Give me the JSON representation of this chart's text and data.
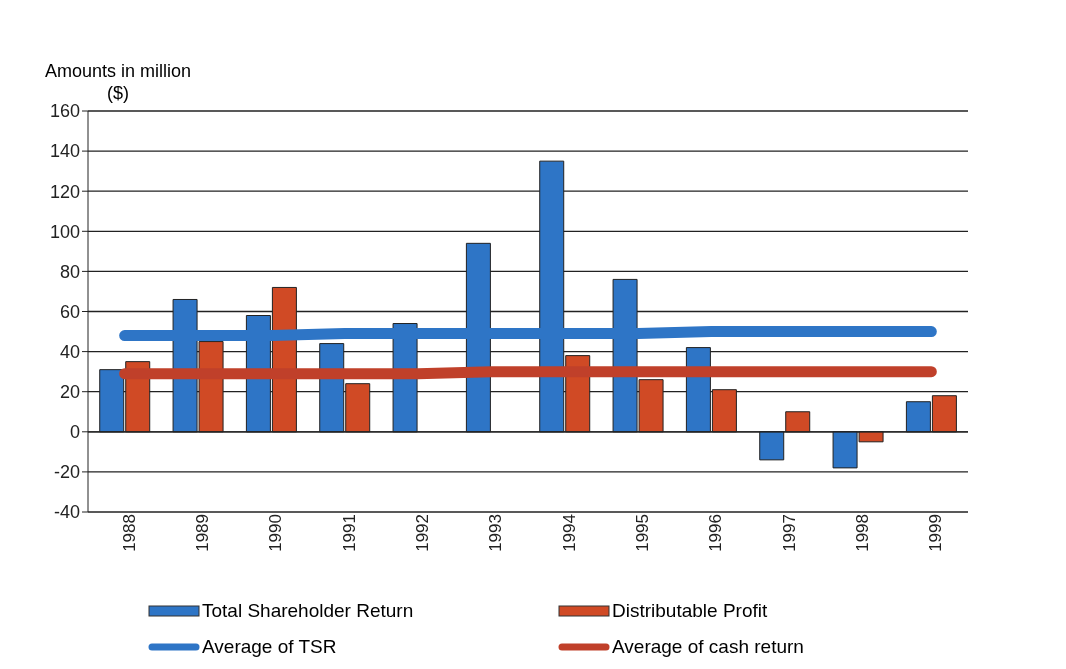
{
  "chart_data": {
    "type": "bar",
    "ylabel": "Amounts in million ($)",
    "categories": [
      "1988",
      "1989",
      "1990",
      "1991",
      "1992",
      "1993",
      "1994",
      "1995",
      "1996",
      "1997",
      "1998",
      "1999"
    ],
    "series": [
      {
        "name": "Total Shareholder Return",
        "color": "#2e75c6",
        "values": [
          31,
          66,
          58,
          44,
          54,
          94,
          135,
          76,
          42,
          -14,
          -18,
          15
        ]
      },
      {
        "name": "Distributable Profit",
        "color": "#d04a25",
        "values": [
          35,
          45,
          72,
          24,
          null,
          null,
          38,
          26,
          21,
          10,
          -5,
          18
        ]
      },
      {
        "name": "Average of TSR",
        "type": "line",
        "color": "#2e75c6",
        "values": [
          48,
          48,
          48,
          49,
          49,
          49,
          49,
          49,
          50,
          50,
          50,
          50
        ]
      },
      {
        "name": "Average of cash return",
        "type": "line",
        "color": "#c0402a",
        "values": [
          29,
          29,
          29,
          29,
          29,
          30,
          30,
          30,
          30,
          30,
          30,
          30
        ]
      }
    ],
    "ylim": [
      -40,
      160
    ],
    "yticks": [
      -40,
      -20,
      0,
      20,
      40,
      60,
      80,
      100,
      120,
      140,
      160
    ],
    "grid": "y",
    "legend": "bottom",
    "marker": "none",
    "line_style": "solid"
  }
}
